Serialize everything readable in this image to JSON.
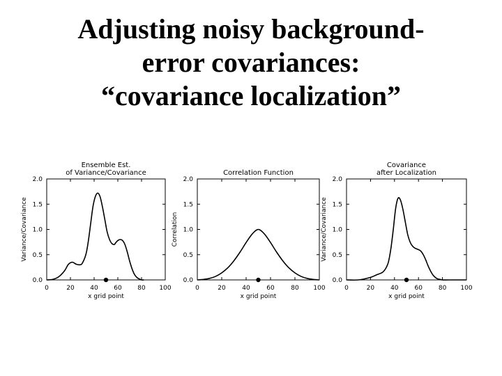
{
  "slide": {
    "title_lines": [
      "Adjusting noisy background-",
      "error covariances:",
      "“covariance localization”"
    ]
  },
  "chart_data": [
    {
      "type": "line",
      "title_lines": [
        "Ensemble Est.",
        "of Variance/Covariance"
      ],
      "xlabel": "x grid point",
      "ylabel": "Variance/Covariance",
      "xlim": [
        0,
        100
      ],
      "ylim": [
        0,
        2.0
      ],
      "xticks": [
        0,
        20,
        40,
        60,
        80,
        100
      ],
      "yticks": [
        0.0,
        0.5,
        1.0,
        1.5,
        2.0
      ],
      "x": [
        0,
        5,
        10,
        15,
        18,
        20,
        22,
        25,
        28,
        30,
        33,
        35,
        37,
        39,
        41,
        43,
        45,
        47,
        49,
        51,
        53,
        55,
        57,
        58,
        60,
        62,
        64,
        66,
        68,
        70,
        72,
        74,
        76,
        78,
        80,
        82
      ],
      "y": [
        0.0,
        0.01,
        0.06,
        0.18,
        0.3,
        0.34,
        0.35,
        0.31,
        0.3,
        0.33,
        0.5,
        0.75,
        1.1,
        1.45,
        1.65,
        1.72,
        1.65,
        1.45,
        1.2,
        0.95,
        0.8,
        0.72,
        0.7,
        0.73,
        0.78,
        0.8,
        0.78,
        0.7,
        0.55,
        0.37,
        0.22,
        0.11,
        0.05,
        0.02,
        0.0,
        0.0
      ],
      "marker": {
        "x": 50,
        "y": 0.0
      }
    },
    {
      "type": "line",
      "title_lines": [
        "Correlation Function"
      ],
      "xlabel": "x grid point",
      "ylabel": "Correlation",
      "xlim": [
        0,
        100
      ],
      "ylim": [
        0,
        2.0
      ],
      "xticks": [
        0,
        20,
        40,
        60,
        80,
        100
      ],
      "yticks": [
        0.0,
        0.5,
        1.0,
        1.5,
        2.0
      ],
      "x": [
        0,
        5,
        10,
        15,
        20,
        25,
        30,
        35,
        40,
        45,
        50,
        55,
        60,
        65,
        70,
        75,
        80,
        85,
        90,
        95,
        100
      ],
      "y": [
        0.0,
        0.01,
        0.03,
        0.07,
        0.14,
        0.24,
        0.38,
        0.55,
        0.74,
        0.91,
        1.0,
        0.91,
        0.74,
        0.55,
        0.38,
        0.24,
        0.14,
        0.07,
        0.03,
        0.01,
        0.0
      ],
      "marker": {
        "x": 50,
        "y": 0.0
      }
    },
    {
      "type": "line",
      "title_lines": [
        "Covariance",
        "after Localization"
      ],
      "xlabel": "x grid point",
      "ylabel": "Variance/Covariance",
      "xlim": [
        0,
        100
      ],
      "ylim": [
        0,
        2.0
      ],
      "xticks": [
        0,
        20,
        40,
        60,
        80,
        100
      ],
      "yticks": [
        0.0,
        0.5,
        1.0,
        1.5,
        2.0
      ],
      "x": [
        0,
        10,
        20,
        25,
        30,
        33,
        35,
        37,
        39,
        41,
        43,
        45,
        47,
        49,
        51,
        53,
        55,
        57,
        60,
        62,
        64,
        66,
        68,
        70,
        72,
        74,
        76,
        78,
        80,
        85,
        90,
        100
      ],
      "y": [
        0.0,
        0.0,
        0.05,
        0.1,
        0.15,
        0.24,
        0.36,
        0.62,
        1.0,
        1.42,
        1.62,
        1.58,
        1.4,
        1.15,
        0.9,
        0.75,
        0.67,
        0.63,
        0.6,
        0.57,
        0.5,
        0.4,
        0.28,
        0.18,
        0.1,
        0.05,
        0.02,
        0.01,
        0.0,
        0.0,
        0.0,
        0.0
      ],
      "marker": {
        "x": 50,
        "y": 0.0
      }
    }
  ]
}
